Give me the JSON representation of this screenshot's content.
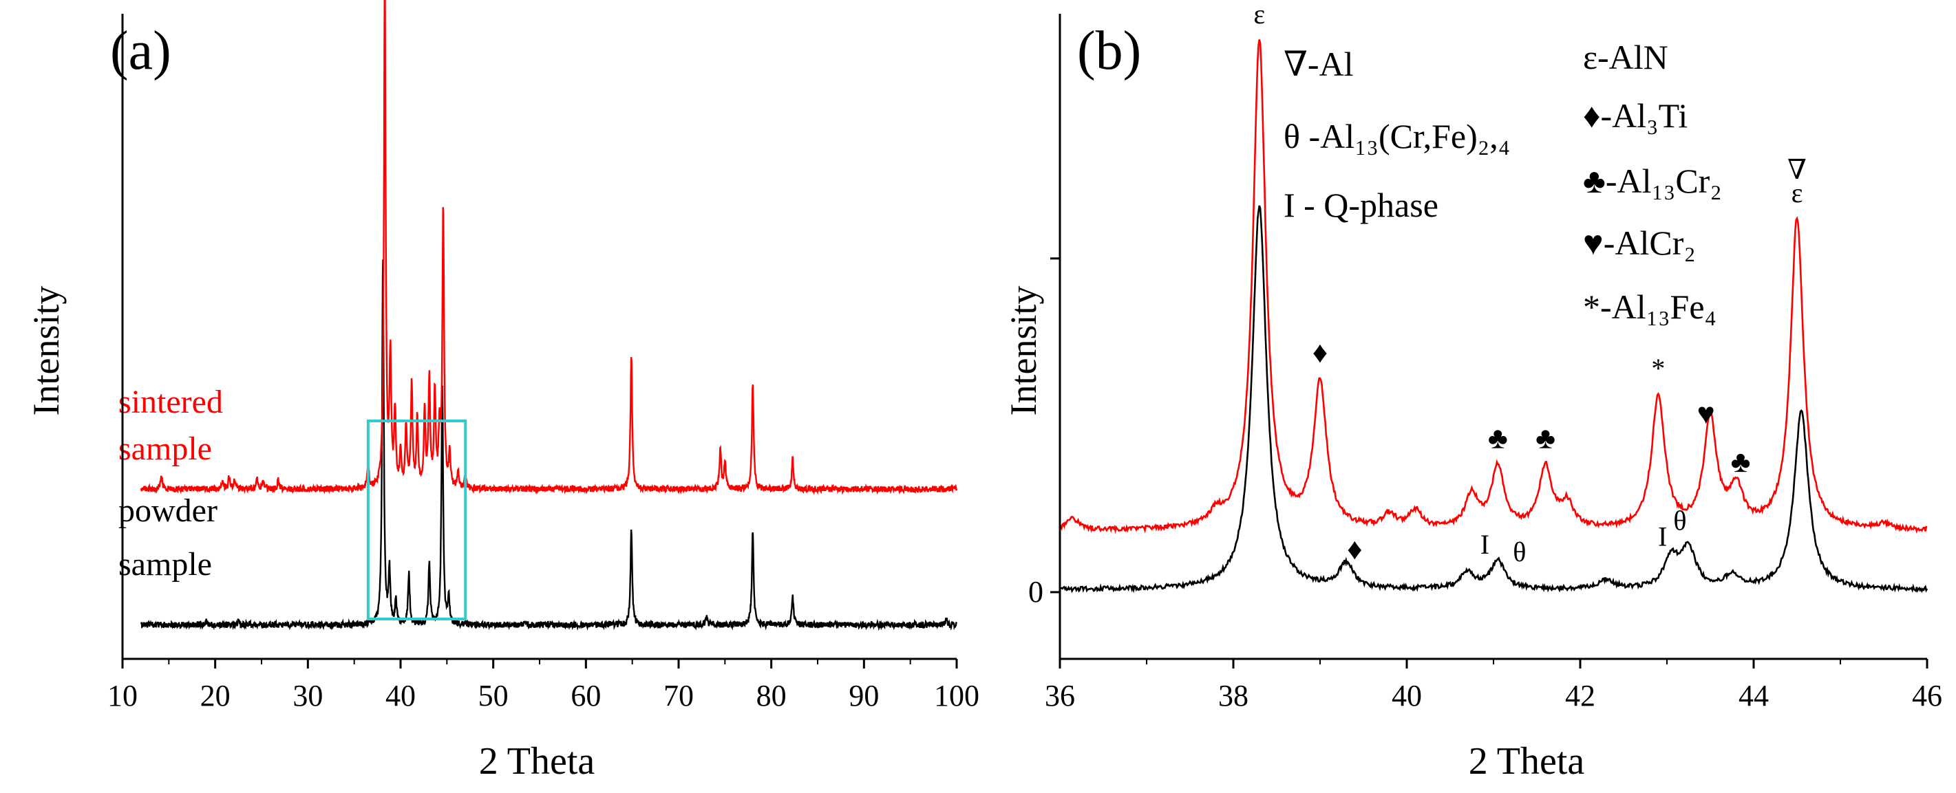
{
  "colors": {
    "sintered": "#ff0000",
    "powder": "#000000",
    "box": "#33cccc",
    "axis": "#000000"
  },
  "chart_data": [
    {
      "panel": "(a)",
      "type": "line",
      "title": "",
      "xlabel": "2 Theta",
      "ylabel": "Intensity",
      "xlim": [
        10,
        100
      ],
      "xticks": [
        "10",
        "20",
        "30",
        "40",
        "50",
        "60",
        "70",
        "80",
        "90",
        "100"
      ],
      "y_ticks_shown": false,
      "grid": false,
      "series": [
        {
          "name": "sintered sample",
          "label_lines": [
            "sintered",
            "sample"
          ],
          "color": "#ff0000",
          "baseline": 100,
          "peaks": [
            [
              14.2,
              10
            ],
            [
              20.8,
              6
            ],
            [
              21.5,
              9
            ],
            [
              22.1,
              7
            ],
            [
              24.5,
              8
            ],
            [
              25.2,
              6
            ],
            [
              26.8,
              7
            ],
            [
              36.5,
              18
            ],
            [
              38.3,
              380
            ],
            [
              38.9,
              95
            ],
            [
              39.4,
              55
            ],
            [
              40.0,
              25
            ],
            [
              40.6,
              45
            ],
            [
              41.2,
              75
            ],
            [
              41.8,
              50
            ],
            [
              42.6,
              55
            ],
            [
              43.1,
              80
            ],
            [
              43.7,
              70
            ],
            [
              44.2,
              40
            ],
            [
              44.6,
              205
            ],
            [
              45.3,
              25
            ],
            [
              46.2,
              12
            ],
            [
              47.0,
              10
            ],
            [
              64.9,
              98
            ],
            [
              74.5,
              30
            ],
            [
              75.0,
              20
            ],
            [
              78.0,
              78
            ],
            [
              82.3,
              23
            ]
          ]
        },
        {
          "name": "powder sample",
          "label_lines": [
            "powder",
            "sample"
          ],
          "color": "#000000",
          "baseline": 0,
          "peaks": [
            [
              19.0,
              3
            ],
            [
              22.5,
              3
            ],
            [
              38.1,
              270
            ],
            [
              38.8,
              40
            ],
            [
              39.5,
              18
            ],
            [
              40.9,
              38
            ],
            [
              43.1,
              45
            ],
            [
              44.5,
              180
            ],
            [
              45.2,
              20
            ],
            [
              64.9,
              70
            ],
            [
              73.0,
              7
            ],
            [
              78.0,
              70
            ],
            [
              82.3,
              22
            ],
            [
              98.9,
              6
            ]
          ]
        }
      ],
      "annotations": [
        {
          "type": "box",
          "x_range": [
            36.5,
            47
          ],
          "description": "zoom region shown in (b)"
        }
      ]
    },
    {
      "panel": "(b)",
      "type": "line",
      "title": "",
      "xlabel": "2 Theta",
      "ylabel": "Intensity",
      "xlim": [
        36,
        46
      ],
      "xticks": [
        "36",
        "38",
        "40",
        "42",
        "44",
        "46"
      ],
      "yticks": [
        "0"
      ],
      "grid": false,
      "series": [
        {
          "name": "sintered sample",
          "color": "#ff0000",
          "baseline": 55,
          "peaks": [
            [
              36.15,
              10
            ],
            [
              37.8,
              10
            ],
            [
              38.3,
              440
            ],
            [
              39.0,
              130
            ],
            [
              39.8,
              12
            ],
            [
              40.1,
              16
            ],
            [
              40.75,
              30
            ],
            [
              41.05,
              55
            ],
            [
              41.6,
              55
            ],
            [
              41.85,
              22
            ],
            [
              42.9,
              120
            ],
            [
              43.5,
              98
            ],
            [
              43.8,
              35
            ],
            [
              44.5,
              280
            ],
            [
              45.5,
              5
            ]
          ]
        },
        {
          "name": "powder sample",
          "color": "#000000",
          "baseline": 2,
          "peaks": [
            [
              38.3,
              345
            ],
            [
              39.3,
              22
            ],
            [
              40.7,
              15
            ],
            [
              41.05,
              25
            ],
            [
              42.3,
              8
            ],
            [
              43.05,
              28
            ],
            [
              43.25,
              35
            ],
            [
              43.75,
              12
            ],
            [
              44.55,
              160
            ]
          ]
        }
      ],
      "legend_left": [
        "∇-Al",
        "θ -Al₁₃(Cr,Fe)₂,₄",
        "I - Q-phase"
      ],
      "legend_right": [
        "ε-AlN",
        "♦-Al₃Ti",
        "♣-Al₁₃Cr₂",
        "♥-AlCr₂",
        "*-Al₁₃Fe₄"
      ],
      "markers": [
        {
          "symbol": "ε",
          "x": 38.3,
          "series": "sintered sample"
        },
        {
          "symbol": "∇",
          "x": 38.3,
          "series": "sintered sample"
        },
        {
          "symbol": "ε",
          "x": 44.5,
          "series": "sintered sample"
        },
        {
          "symbol": "∇",
          "x": 44.5,
          "series": "sintered sample"
        },
        {
          "symbol": "♦",
          "x": 39.0,
          "series": "sintered sample"
        },
        {
          "symbol": "♦",
          "x": 39.4,
          "series": "powder sample"
        },
        {
          "symbol": "♣",
          "x": 41.05,
          "series": "sintered sample"
        },
        {
          "symbol": "♣",
          "x": 41.6,
          "series": "sintered sample"
        },
        {
          "symbol": "*",
          "x": 42.9,
          "series": "sintered sample"
        },
        {
          "symbol": "♥",
          "x": 43.45,
          "series": "sintered sample"
        },
        {
          "symbol": "♣",
          "x": 43.85,
          "series": "sintered sample"
        },
        {
          "symbol": "I",
          "x": 40.9,
          "series": "powder sample"
        },
        {
          "symbol": "θ",
          "x": 41.3,
          "series": "powder sample"
        },
        {
          "symbol": "I",
          "x": 42.95,
          "series": "powder sample"
        },
        {
          "symbol": "θ",
          "x": 43.15,
          "series": "powder sample"
        }
      ]
    }
  ]
}
